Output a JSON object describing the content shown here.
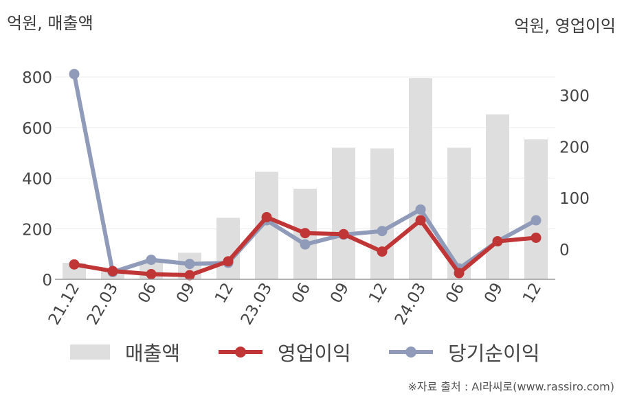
{
  "header": {
    "left_unit": "억원, 매출액",
    "right_unit": "억원, 영업이익"
  },
  "source": "※자료 출처 : AI라씨로(www.rassiro.com)",
  "legend": [
    {
      "label": "매출액",
      "type": "bar",
      "color": "#dedede"
    },
    {
      "label": "영업이익",
      "type": "line",
      "color": "#c03535"
    },
    {
      "label": "당기순이익",
      "type": "line",
      "color": "#8f9bb8"
    }
  ],
  "chart_data": {
    "type": "bar",
    "categories": [
      "21.12",
      "22.03",
      "06",
      "09",
      "12",
      "23.03",
      "06",
      "09",
      "12",
      "24.03",
      "06",
      "09",
      "12"
    ],
    "left_axis": {
      "ylim": [
        0,
        860
      ],
      "ticks": [
        0,
        200,
        400,
        600,
        800
      ]
    },
    "right_axis": {
      "ylim": [
        -59,
        365
      ],
      "ticks": [
        0,
        100,
        200,
        300
      ]
    },
    "series": [
      {
        "name": "매출액",
        "type": "bar",
        "axis": "left",
        "color": "#dedede",
        "values": [
          65,
          35,
          70,
          105,
          243,
          425,
          358,
          520,
          517,
          795,
          520,
          652,
          553
        ]
      },
      {
        "name": "영업이익",
        "type": "line",
        "axis": "right",
        "color": "#c03535",
        "values": [
          -30,
          -43,
          -49,
          -51,
          -24,
          62,
          31,
          29,
          -5,
          56,
          -47,
          15,
          22
        ]
      },
      {
        "name": "당기순이익",
        "type": "line",
        "axis": "right",
        "color": "#8f9bb8",
        "values": [
          341,
          -45,
          -21,
          -29,
          -27,
          56,
          9,
          28,
          35,
          77,
          -38,
          15,
          56
        ]
      }
    ]
  }
}
